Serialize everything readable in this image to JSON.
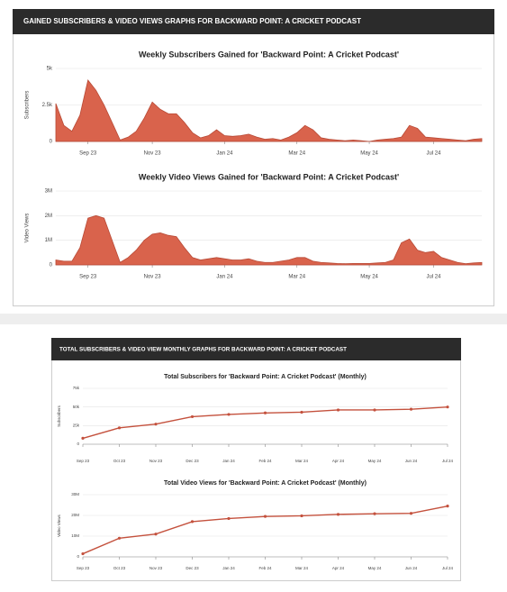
{
  "panels": [
    {
      "header": "GAINED SUBSCRIBERS & VIDEO VIEWS GRAPHS FOR BACKWARD POINT: A CRICKET PODCAST"
    },
    {
      "header": "TOTAL SUBSCRIBERS & VIDEO VIEW MONTHLY GRAPHS FOR BACKWARD POINT: A CRICKET PODCAST"
    }
  ],
  "chart_data": [
    {
      "type": "area",
      "title": "Weekly Subscribers Gained for 'Backward Point: A Cricket Podcast'",
      "ylabel": "Subscribers",
      "color": "#d9634c",
      "categories": [
        null,
        null,
        null,
        null,
        "Sep 23",
        null,
        null,
        null,
        null,
        null,
        null,
        null,
        "Nov 23",
        null,
        null,
        null,
        null,
        null,
        null,
        null,
        null,
        "Jan 24",
        null,
        null,
        null,
        null,
        null,
        null,
        null,
        null,
        "Mar 24",
        null,
        null,
        null,
        null,
        null,
        null,
        null,
        null,
        "May 24",
        null,
        null,
        null,
        null,
        null,
        null,
        null,
        "Jul 24",
        null,
        null,
        null,
        null,
        null,
        null
      ],
      "values": [
        2600,
        1100,
        700,
        1800,
        4200,
        3500,
        2500,
        1300,
        100,
        300,
        700,
        1600,
        2700,
        2200,
        1900,
        1900,
        1300,
        600,
        250,
        400,
        800,
        400,
        350,
        400,
        500,
        300,
        150,
        200,
        100,
        300,
        600,
        1100,
        800,
        250,
        150,
        100,
        50,
        100,
        50,
        0,
        100,
        150,
        200,
        300,
        1100,
        900,
        300,
        250,
        200,
        150,
        100,
        50,
        150,
        200
      ],
      "ylim": [
        0,
        5000
      ],
      "yticks": [
        0,
        {
          "value": 2500,
          "label": "2.5k"
        },
        {
          "value": 5000,
          "label": "5k"
        }
      ]
    },
    {
      "type": "area",
      "title": "Weekly Video Views Gained for 'Backward Point: A Cricket Podcast'",
      "ylabel": "Video Views",
      "color": "#d9634c",
      "categories": [
        null,
        null,
        null,
        null,
        "Sep 23",
        null,
        null,
        null,
        null,
        null,
        null,
        null,
        "Nov 23",
        null,
        null,
        null,
        null,
        null,
        null,
        null,
        null,
        "Jan 24",
        null,
        null,
        null,
        null,
        null,
        null,
        null,
        null,
        "Mar 24",
        null,
        null,
        null,
        null,
        null,
        null,
        null,
        null,
        "May 24",
        null,
        null,
        null,
        null,
        null,
        null,
        null,
        "Jul 24",
        null,
        null,
        null,
        null,
        null,
        null
      ],
      "values": [
        200000,
        150000,
        150000,
        700000,
        1900000,
        2000000,
        1900000,
        1000000,
        100000,
        300000,
        600000,
        1000000,
        1250000,
        1300000,
        1200000,
        1150000,
        700000,
        300000,
        200000,
        250000,
        300000,
        250000,
        200000,
        200000,
        250000,
        150000,
        100000,
        100000,
        150000,
        200000,
        300000,
        300000,
        150000,
        100000,
        80000,
        60000,
        50000,
        60000,
        60000,
        60000,
        80000,
        100000,
        200000,
        900000,
        1050000,
        600000,
        500000,
        550000,
        300000,
        200000,
        100000,
        50000,
        80000,
        100000
      ],
      "ylim": [
        0,
        3000000
      ],
      "yticks": [
        0,
        {
          "value": 1000000,
          "label": "1M"
        },
        {
          "value": 2000000,
          "label": "2M"
        },
        {
          "value": 3000000,
          "label": "3M"
        }
      ]
    },
    {
      "type": "line",
      "title": "Total Subscribers for 'Backward Point: A Cricket Podcast' (Monthly)",
      "ylabel": "Subscribers",
      "color": "#c4513d",
      "categories": [
        "Sep 23",
        "Oct 23",
        "Nov 23",
        "Dec 23",
        "Jan 24",
        "Feb 24",
        "Mar 24",
        "Apr 24",
        "May 24",
        "Jun 24",
        "Jul 24"
      ],
      "values": [
        8000,
        22000,
        27000,
        37000,
        40000,
        42000,
        43000,
        46000,
        46000,
        47000,
        50000
      ],
      "ylim": [
        0,
        75000
      ],
      "yticks": [
        0,
        {
          "value": 25000,
          "label": "25k"
        },
        {
          "value": 50000,
          "label": "50k"
        },
        {
          "value": 75000,
          "label": "75k"
        }
      ]
    },
    {
      "type": "line",
      "title": "Total Video Views for 'Backward Point: A Cricket Podcast' (Monthly)",
      "ylabel": "Video Views",
      "color": "#c4513d",
      "categories": [
        "Sep 23",
        "Oct 23",
        "Nov 23",
        "Dec 23",
        "Jan 24",
        "Feb 24",
        "Mar 24",
        "Apr 24",
        "May 24",
        "Jun 24",
        "Jul 24"
      ],
      "values": [
        1500000,
        9000000,
        11000000,
        17000000,
        18500000,
        19500000,
        19800000,
        20500000,
        20800000,
        21000000,
        24500000
      ],
      "ylim": [
        0,
        30000000
      ],
      "yticks": [
        0,
        {
          "value": 10000000,
          "label": "10M"
        },
        {
          "value": 20000000,
          "label": "20M"
        },
        {
          "value": 30000000,
          "label": "30M"
        }
      ]
    }
  ]
}
